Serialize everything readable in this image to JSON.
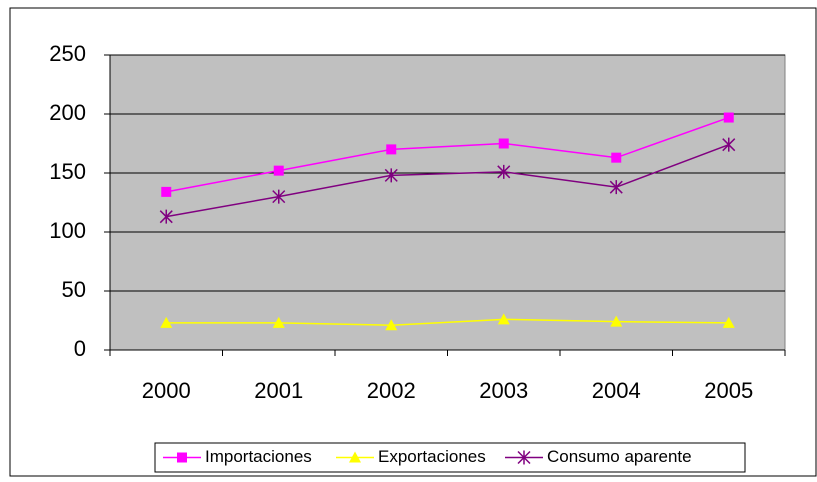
{
  "chart_data": {
    "type": "line",
    "categories": [
      "2000",
      "2001",
      "2002",
      "2003",
      "2004",
      "2005"
    ],
    "series": [
      {
        "name": "Importaciones",
        "color": "#ff00ff",
        "marker": "square",
        "values": [
          134,
          152,
          170,
          175,
          163,
          197
        ]
      },
      {
        "name": "Exportaciones",
        "color": "#ffff00",
        "marker": "triangle",
        "values": [
          23,
          23,
          21,
          26,
          24,
          23
        ]
      },
      {
        "name": "Consumo aparente",
        "color": "#800080",
        "marker": "asterisk",
        "values": [
          113,
          130,
          148,
          151,
          138,
          174
        ]
      }
    ],
    "ylim": [
      0,
      250
    ],
    "yticks": [
      0,
      50,
      100,
      150,
      200,
      250
    ],
    "grid": true,
    "legend": "bottom"
  }
}
